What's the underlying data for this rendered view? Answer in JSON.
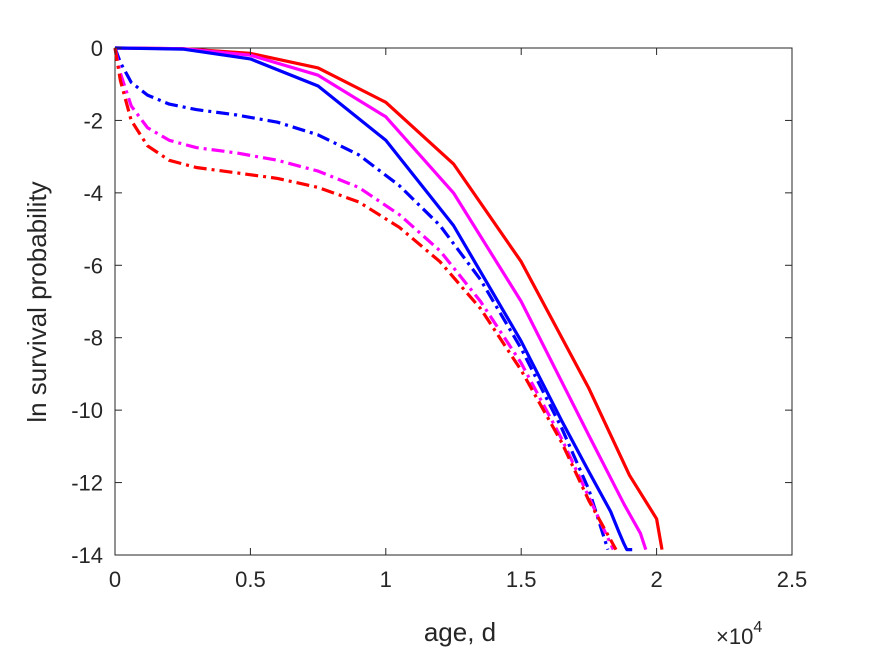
{
  "chart_data": {
    "type": "line",
    "title": "",
    "xlabel": "age, d",
    "ylabel": "ln survival probability",
    "x_exponent_label": "×10",
    "x_exponent_power": "4",
    "x_multiplier": 10000,
    "xlim": [
      0,
      25000
    ],
    "ylim": [
      -14,
      0
    ],
    "x_ticks": [
      0,
      5000,
      10000,
      15000,
      20000,
      25000
    ],
    "x_tick_labels": [
      "0",
      "0.5",
      "1",
      "1.5",
      "2",
      "2.5"
    ],
    "y_ticks": [
      0,
      -2,
      -4,
      -6,
      -8,
      -10,
      -12,
      -14
    ],
    "y_tick_labels": [
      "0",
      "-2",
      "-4",
      "-6",
      "-8",
      "-10",
      "-12",
      "-14"
    ],
    "grid": false,
    "box": true,
    "series": [
      {
        "style": "solid",
        "color": "#ff0000",
        "x": [
          0,
          2500,
          5000,
          7500,
          10000,
          12500,
          15000,
          17500,
          19000,
          20000,
          20200
        ],
        "y": [
          0,
          -0.02,
          -0.15,
          -0.55,
          -1.5,
          -3.2,
          -5.9,
          -9.4,
          -11.8,
          -13.0,
          -13.85
        ]
      },
      {
        "style": "solid",
        "color": "#ff00ff",
        "x": [
          0,
          2500,
          5000,
          7500,
          10000,
          12500,
          15000,
          17500,
          18800,
          19400,
          19600
        ],
        "y": [
          0,
          -0.02,
          -0.2,
          -0.75,
          -1.9,
          -4.0,
          -7.0,
          -10.7,
          -12.6,
          -13.4,
          -13.85
        ]
      },
      {
        "style": "solid",
        "color": "#0000ff",
        "x": [
          0,
          2500,
          5000,
          7500,
          10000,
          12500,
          15000,
          16500,
          17500,
          18300,
          18600,
          18800,
          18900,
          19100
        ],
        "y": [
          0,
          -0.03,
          -0.3,
          -1.05,
          -2.55,
          -4.9,
          -8.1,
          -10.3,
          -11.7,
          -12.8,
          -13.35,
          -13.7,
          -13.85,
          -13.85
        ]
      },
      {
        "style": "dashdot",
        "color": "#0000ff",
        "x": [
          0,
          200,
          600,
          1200,
          2000,
          3000,
          4500,
          6000,
          7500,
          9000,
          10500,
          12000,
          13500,
          15000,
          16500,
          17500,
          18200
        ],
        "y": [
          0,
          -0.4,
          -0.95,
          -1.3,
          -1.55,
          -1.7,
          -1.85,
          -2.05,
          -2.4,
          -2.95,
          -3.8,
          -4.9,
          -6.4,
          -8.3,
          -10.5,
          -12.2,
          -13.85
        ]
      },
      {
        "style": "dashdot",
        "color": "#ff00ff",
        "x": [
          0,
          200,
          600,
          1200,
          2000,
          3000,
          4500,
          6000,
          7500,
          9000,
          10500,
          12000,
          13500,
          15000,
          16500,
          17500,
          18400
        ],
        "y": [
          0,
          -0.7,
          -1.6,
          -2.2,
          -2.55,
          -2.75,
          -2.9,
          -3.1,
          -3.4,
          -3.85,
          -4.6,
          -5.6,
          -7.0,
          -8.7,
          -10.8,
          -12.4,
          -13.85
        ]
      },
      {
        "style": "dashdot",
        "color": "#ff0000",
        "x": [
          0,
          200,
          600,
          1200,
          2000,
          3000,
          4500,
          6000,
          7500,
          9000,
          10500,
          12000,
          13500,
          15000,
          16500,
          17500,
          18500
        ],
        "y": [
          0,
          -0.9,
          -2.0,
          -2.7,
          -3.1,
          -3.3,
          -3.45,
          -3.6,
          -3.85,
          -4.25,
          -4.95,
          -5.9,
          -7.2,
          -8.9,
          -10.9,
          -12.5,
          -13.85
        ]
      }
    ]
  }
}
